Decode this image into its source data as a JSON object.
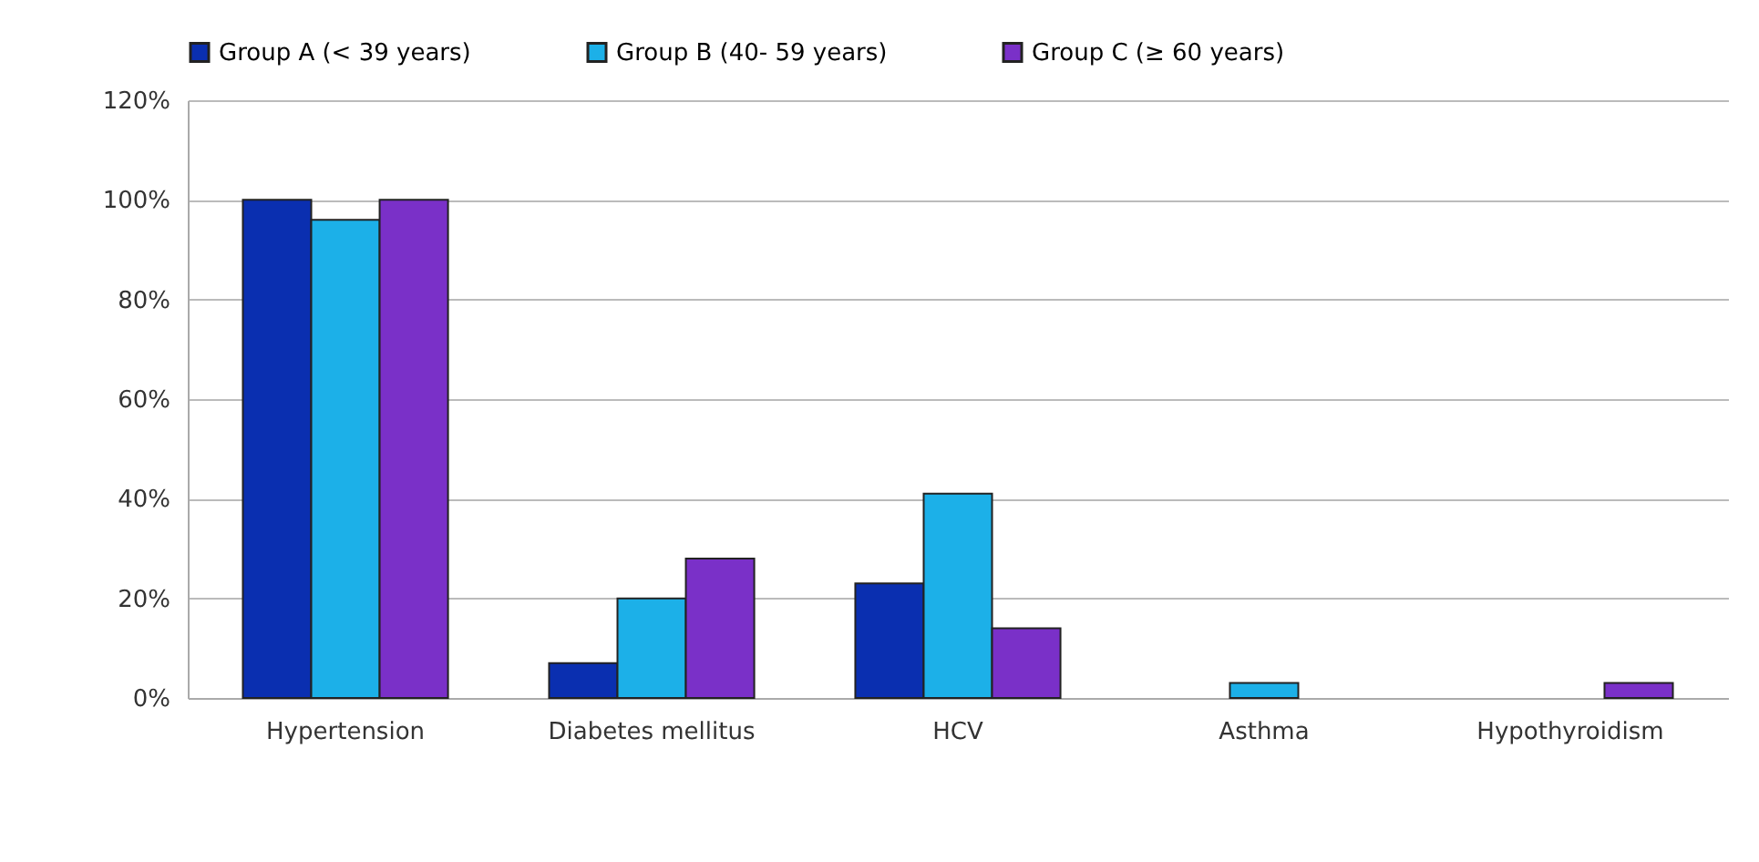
{
  "chart_data": {
    "type": "bar",
    "categories": [
      "Hypertension",
      "Diabetes mellitus",
      "HCV",
      "Asthma",
      "Hypothyroidism"
    ],
    "series": [
      {
        "name": "Group A (< 39 years)",
        "color": "#0a2fb0",
        "values": [
          100,
          7,
          23,
          null,
          null
        ]
      },
      {
        "name": "Group B (40- 59 years)",
        "color": "#1cb0e8",
        "values": [
          96,
          20,
          41,
          3,
          null
        ]
      },
      {
        "name": "Group C (≥ 60 years)",
        "color": "#7a30c8",
        "values": [
          100,
          28,
          14,
          null,
          3
        ]
      }
    ],
    "ylim": [
      0,
      120
    ],
    "yticks": [
      {
        "value": 0,
        "label": "0%"
      },
      {
        "value": 20,
        "label": "20%"
      },
      {
        "value": 40,
        "label": "40%"
      },
      {
        "value": 60,
        "label": "60%"
      },
      {
        "value": 80,
        "label": "80%"
      },
      {
        "value": 100,
        "label": "100%"
      },
      {
        "value": 120,
        "label": "120%"
      }
    ],
    "grid": "y",
    "legend": "top"
  }
}
